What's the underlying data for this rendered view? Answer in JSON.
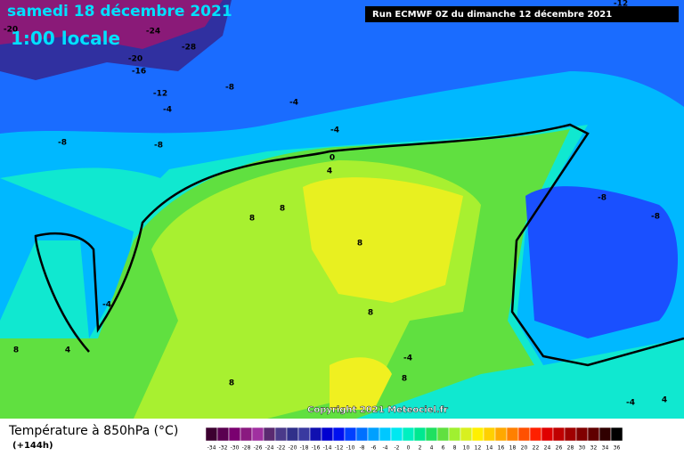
{
  "header": {
    "date": "samedi 18 décembre 2021",
    "time": "1:00 locale",
    "run": "Run ECMWF 0Z du dimanche 12 décembre 2021"
  },
  "copyright": "Copyright 2021 Meteociel.fr",
  "legend": {
    "title": "Température à 850hPa (°C)",
    "lead": "(+144h)",
    "ticks": [
      -34,
      -32,
      -30,
      -28,
      -26,
      -24,
      -22,
      -20,
      -18,
      -16,
      -14,
      -12,
      -10,
      -8,
      -6,
      -4,
      -2,
      0,
      2,
      4,
      6,
      8,
      10,
      12,
      14,
      16,
      18,
      20,
      22,
      24,
      26,
      28,
      30,
      32,
      34,
      36
    ],
    "colors": [
      "#3c0030",
      "#5a0050",
      "#7a0070",
      "#8a1a80",
      "#a030a0",
      "#5a2a70",
      "#4a3a8a",
      "#30308a",
      "#3a3aa0",
      "#1010b0",
      "#0000d0",
      "#0010f0",
      "#0040ff",
      "#0070ff",
      "#00a0ff",
      "#00c8ff",
      "#00e8f0",
      "#00f0c0",
      "#00e890",
      "#20e060",
      "#60e040",
      "#a0f030",
      "#d8f020",
      "#fff000",
      "#ffd000",
      "#ffa800",
      "#ff8000",
      "#ff5000",
      "#ff2000",
      "#e00000",
      "#c00000",
      "#a00000",
      "#800000",
      "#600000",
      "#300000",
      "#000000"
    ]
  },
  "contour_labels": [
    "-20",
    "-24",
    "-28",
    "-20",
    "-16",
    "-12",
    "-8",
    "-4",
    "-4",
    "-4",
    "-8",
    "-8",
    "0",
    "4",
    "8",
    "8",
    "8",
    "-4",
    "8",
    "4",
    "8",
    "8",
    "-4",
    "8",
    "-8",
    "-8",
    "-4",
    "4",
    "-12"
  ]
}
